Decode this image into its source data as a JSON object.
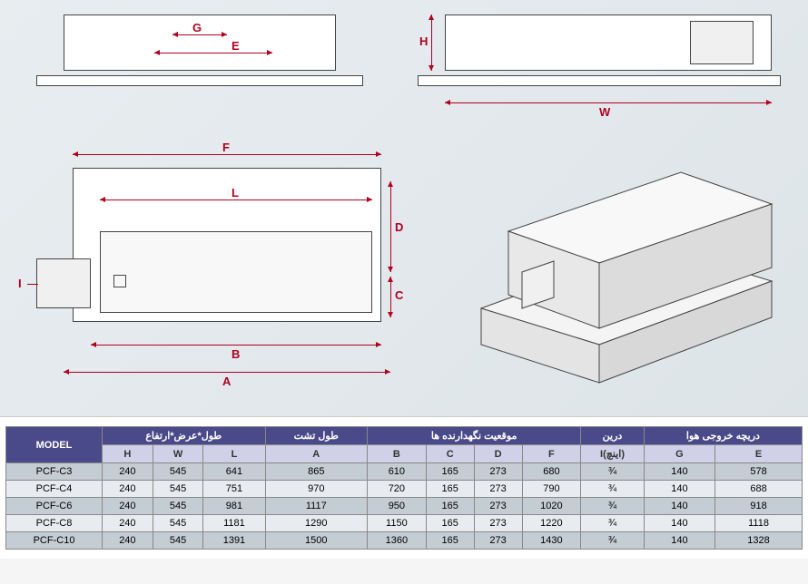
{
  "diagram": {
    "dim_color": "#b00020",
    "line_color": "#333333",
    "labels": {
      "G": "G",
      "E": "E",
      "H": "H",
      "W": "W",
      "F": "F",
      "L": "L",
      "D": "D",
      "C": "C",
      "I": "I",
      "B": "B",
      "A": "A"
    }
  },
  "table": {
    "header_bg": "#4a4a8a",
    "subheader_bg": "#d0d0e8",
    "row_alt1": "#c4ccd4",
    "row_alt2": "#e8ecf0",
    "group_headers": {
      "model": "MODEL",
      "dims": "طول*عرض*ارتفاع",
      "tray": "طول تشت",
      "holder": "موقعیت نگهدارنده ها",
      "drain": "درین",
      "outlet": "دریچه خروجی هوا"
    },
    "columns": [
      "H",
      "W",
      "L",
      "A",
      "B",
      "C",
      "D",
      "F",
      "I(اینچ)",
      "G",
      "E"
    ],
    "rows": [
      {
        "model": "PCF-C3",
        "H": "240",
        "W": "545",
        "L": "641",
        "A": "865",
        "B": "610",
        "C": "165",
        "D": "273",
        "F": "680",
        "I": "¾",
        "G": "140",
        "E": "578"
      },
      {
        "model": "PCF-C4",
        "H": "240",
        "W": "545",
        "L": "751",
        "A": "970",
        "B": "720",
        "C": "165",
        "D": "273",
        "F": "790",
        "I": "¾",
        "G": "140",
        "E": "688"
      },
      {
        "model": "PCF-C6",
        "H": "240",
        "W": "545",
        "L": "981",
        "A": "1117",
        "B": "950",
        "C": "165",
        "D": "273",
        "F": "1020",
        "I": "¾",
        "G": "140",
        "E": "918"
      },
      {
        "model": "PCF-C8",
        "H": "240",
        "W": "545",
        "L": "1181",
        "A": "1290",
        "B": "1150",
        "C": "165",
        "D": "273",
        "F": "1220",
        "I": "¾",
        "G": "140",
        "E": "1118"
      },
      {
        "model": "PCF-C10",
        "H": "240",
        "W": "545",
        "L": "1391",
        "A": "1500",
        "B": "1360",
        "C": "165",
        "D": "273",
        "F": "1430",
        "I": "¾",
        "G": "140",
        "E": "1328"
      }
    ]
  }
}
